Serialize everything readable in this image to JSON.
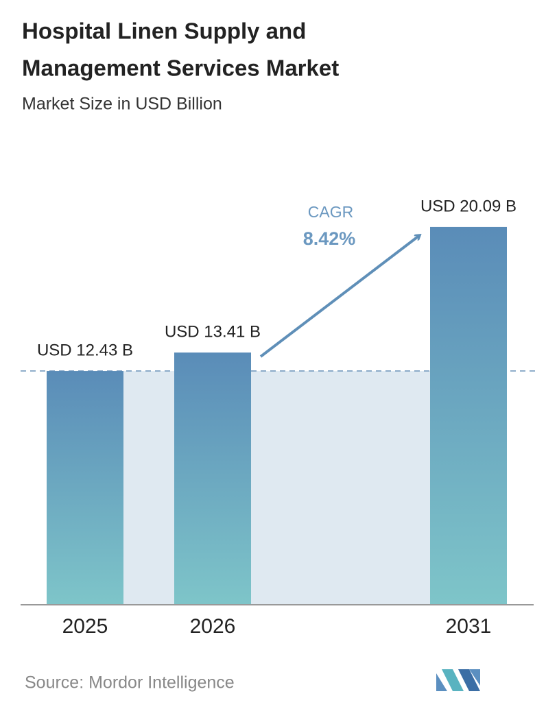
{
  "chart_data": {
    "type": "bar",
    "title": [
      "Hospital Linen Supply and",
      "Management Services Market"
    ],
    "subtitle": "Market Size in USD Billion",
    "categories": [
      "2025",
      "2026",
      "2031"
    ],
    "values": [
      12.43,
      13.41,
      20.09
    ],
    "value_labels": [
      "USD 12.43 B",
      "USD 13.41 B",
      "USD 20.09 B"
    ],
    "cagr_label": "CAGR",
    "cagr_value": "8.42%",
    "source": "Source:  Mordor Intelligence"
  }
}
